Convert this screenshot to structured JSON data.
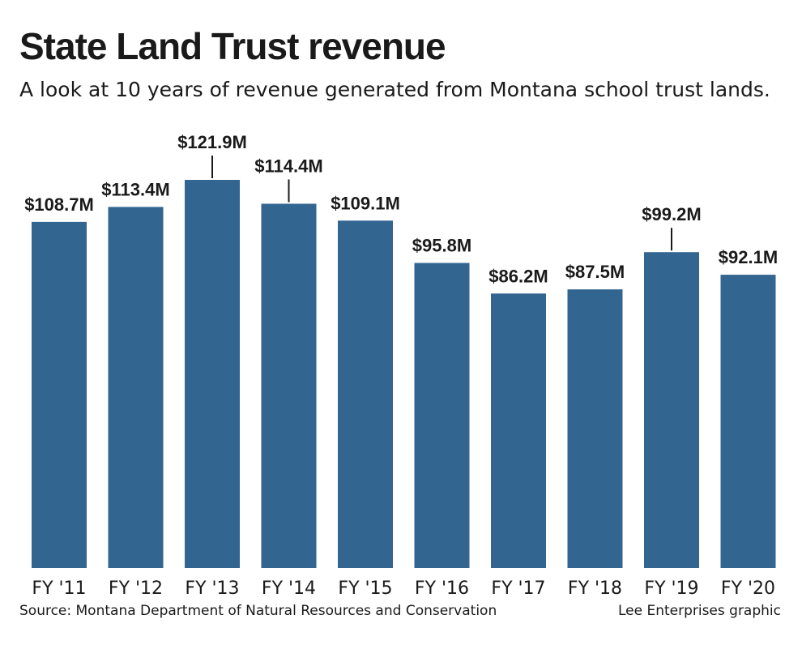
{
  "header": {
    "title": "State Land Trust revenue",
    "subtitle": "A look at 10 years of revenue generated from Montana school trust lands."
  },
  "footer": {
    "source": "Source: Montana Department of Natural Resources and Conservation",
    "credit": "Lee Enterprises graphic"
  },
  "colors": {
    "bar": "#336591",
    "text": "#1a1a1a"
  },
  "chart_data": {
    "type": "bar",
    "title": "State Land Trust revenue",
    "subtitle": "A look at 10 years of revenue generated from Montana school trust lands.",
    "xlabel": "",
    "ylabel": "",
    "grid": false,
    "legend": "none",
    "ylim": [
      0,
      121.9
    ],
    "categories": [
      "FY '11",
      "FY '12",
      "FY '13",
      "FY '14",
      "FY '15",
      "FY '16",
      "FY '17",
      "FY '18",
      "FY '19",
      "FY '20"
    ],
    "values": [
      108.7,
      113.4,
      121.9,
      114.4,
      109.1,
      95.8,
      86.2,
      87.5,
      99.2,
      92.1
    ],
    "data_labels": [
      "$108.7M",
      "$113.4M",
      "$121.9M",
      "$114.4M",
      "$109.1M",
      "$95.8M",
      "$86.2M",
      "$87.5M",
      "$99.2M",
      "$92.1M"
    ],
    "leader_lines": [
      false,
      false,
      true,
      true,
      false,
      false,
      false,
      false,
      true,
      false
    ]
  }
}
